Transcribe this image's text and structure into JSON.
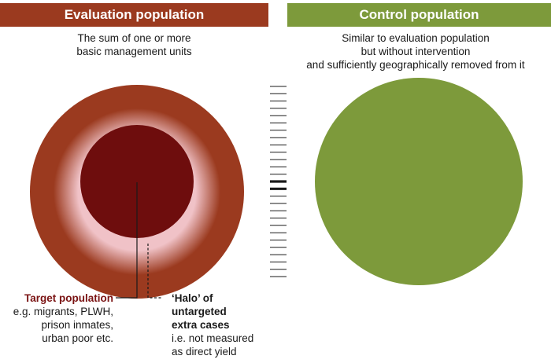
{
  "colors": {
    "evaluation_header": "#9b3a1f",
    "control_header": "#7d9a3b",
    "halo_outer": "#9b3a1f",
    "halo_inner": "#f0c2c7",
    "target_core": "#6e0d0d",
    "control_circle": "#7d9a3b",
    "target_label": "#7a1313",
    "text": "#1a1a1a"
  },
  "evaluation": {
    "header": "Evaluation population",
    "description": [
      "The sum of one or more",
      "basic management units"
    ]
  },
  "control": {
    "header": "Control population",
    "description": [
      "Similar to evaluation population",
      "but without intervention",
      "and sufficiently geographically removed from it"
    ]
  },
  "target": {
    "title": "Target population",
    "lines": [
      "e.g. migrants, PLWH,",
      "prison inmates,",
      "urban poor etc."
    ]
  },
  "halo": {
    "title_lines": [
      "‘Halo’ of",
      "untargeted",
      "extra cases"
    ],
    "lines": [
      "i.e. not measured",
      "as direct yield"
    ]
  }
}
